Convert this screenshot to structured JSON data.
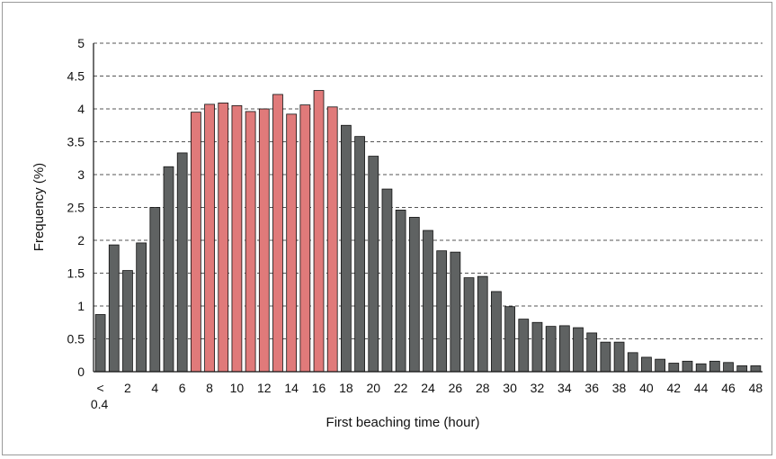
{
  "chart_data": {
    "type": "bar",
    "xlabel": "First beaching time (hour)",
    "ylabel": "Frequency  (%)",
    "ylim": [
      0,
      5
    ],
    "yticks": [
      "0",
      "0.5",
      "1",
      "1.5",
      "2",
      "2.5",
      "3",
      "3.5",
      "4",
      "4.5",
      "5"
    ],
    "grid": "horizontal dashed",
    "colors": {
      "default": "#5f6262",
      "highlight": "#e07a7a",
      "outline": "#111111"
    },
    "first_category_label": [
      "<",
      "0.4"
    ],
    "x_tick_labels": [
      "2",
      "4",
      "6",
      "8",
      "10",
      "12",
      "14",
      "16",
      "18",
      "20",
      "22",
      "24",
      "26",
      "28",
      "30",
      "32",
      "34",
      "36",
      "38",
      "40",
      "42",
      "44",
      "46",
      "48"
    ],
    "categories": [
      "<0.4",
      "1",
      "2",
      "3",
      "4",
      "5",
      "6",
      "7",
      "8",
      "9",
      "10",
      "11",
      "12",
      "13",
      "14",
      "15",
      "16",
      "17",
      "18",
      "19",
      "20",
      "21",
      "22",
      "23",
      "24",
      "25",
      "26",
      "27",
      "28",
      "29",
      "30",
      "31",
      "32",
      "33",
      "34",
      "35",
      "36",
      "37",
      "38",
      "39",
      "40",
      "41",
      "42",
      "43",
      "44",
      "45",
      "46",
      "47",
      "48"
    ],
    "values": [
      0.87,
      1.93,
      1.54,
      1.96,
      2.5,
      3.12,
      3.33,
      3.95,
      4.07,
      4.09,
      4.05,
      3.96,
      4.0,
      4.22,
      3.92,
      4.06,
      4.28,
      4.03,
      3.75,
      3.58,
      3.28,
      2.78,
      2.46,
      2.35,
      2.15,
      1.84,
      1.82,
      1.43,
      1.45,
      1.22,
      0.99,
      0.8,
      0.75,
      0.69,
      0.7,
      0.67,
      0.59,
      0.45,
      0.45,
      0.29,
      0.22,
      0.19,
      0.13,
      0.16,
      0.12,
      0.16,
      0.14,
      0.09,
      0.09
    ],
    "highlighted": [
      false,
      false,
      false,
      false,
      false,
      false,
      false,
      true,
      true,
      true,
      true,
      true,
      true,
      true,
      true,
      true,
      true,
      true,
      false,
      false,
      false,
      false,
      false,
      false,
      false,
      false,
      false,
      false,
      false,
      false,
      false,
      false,
      false,
      false,
      false,
      false,
      false,
      false,
      false,
      false,
      false,
      false,
      false,
      false,
      false,
      false,
      false,
      false,
      false
    ]
  }
}
